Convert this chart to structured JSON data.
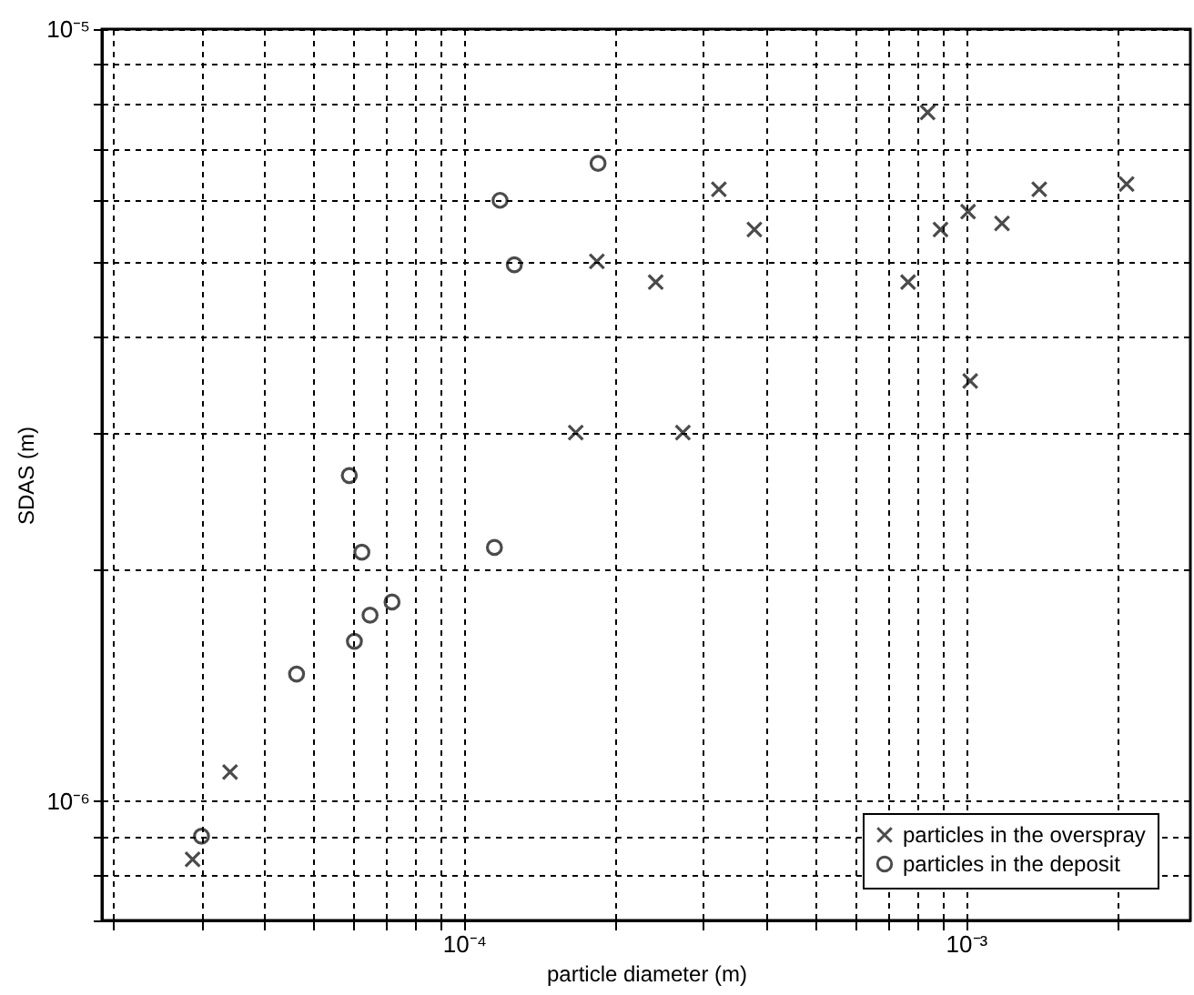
{
  "chart_data": {
    "type": "scatter",
    "xlabel": "particle diameter (m)",
    "ylabel": "SDAS (m)",
    "log": "xy",
    "grid": true,
    "legend": "bottom right",
    "xlim": [
      1.9e-05,
      0.0028
    ],
    "ylim": [
      7e-07,
      1e-05
    ],
    "xticks": [
      {
        "value": 2e-05,
        "label": null
      },
      {
        "value": 3e-05,
        "label": null
      },
      {
        "value": 4e-05,
        "label": null
      },
      {
        "value": 5e-05,
        "label": null
      },
      {
        "value": 6e-05,
        "label": null
      },
      {
        "value": 7e-05,
        "label": null
      },
      {
        "value": 8e-05,
        "label": null
      },
      {
        "value": 9e-05,
        "label": null
      },
      {
        "value": 0.0001,
        "label": "10⁻⁴"
      },
      {
        "value": 0.0002,
        "label": null
      },
      {
        "value": 0.0003,
        "label": null
      },
      {
        "value": 0.0004,
        "label": null
      },
      {
        "value": 0.0005,
        "label": null
      },
      {
        "value": 0.0006,
        "label": null
      },
      {
        "value": 0.0007,
        "label": null
      },
      {
        "value": 0.0008,
        "label": null
      },
      {
        "value": 0.0009,
        "label": null
      },
      {
        "value": 0.001,
        "label": "10⁻³"
      },
      {
        "value": 0.002,
        "label": null
      }
    ],
    "yticks": [
      {
        "value": 7e-07,
        "label": null
      },
      {
        "value": 8e-07,
        "label": null
      },
      {
        "value": 9e-07,
        "label": null
      },
      {
        "value": 1e-06,
        "label": "10⁻⁶"
      },
      {
        "value": 2e-06,
        "label": null
      },
      {
        "value": 3e-06,
        "label": null
      },
      {
        "value": 4e-06,
        "label": null
      },
      {
        "value": 5e-06,
        "label": null
      },
      {
        "value": 6e-06,
        "label": null
      },
      {
        "value": 7e-06,
        "label": null
      },
      {
        "value": 8e-06,
        "label": null
      },
      {
        "value": 9e-06,
        "label": null
      },
      {
        "value": 1e-05,
        "label": "10⁻⁵"
      }
    ],
    "series": [
      {
        "name": "particles in the overspray",
        "color": "#000000",
        "marker": "cross",
        "x": [
          2.88e-05,
          3.42e-05,
          0.000167,
          0.000184,
          0.000241,
          0.000273,
          0.000322,
          0.000379,
          0.000767,
          0.000839,
          0.00089,
          0.00101,
          0.00102,
          0.00118,
          0.0014,
          0.00209
        ],
        "values": [
          8.4e-07,
          1.09e-06,
          3e-06,
          5e-06,
          4.7e-06,
          3e-06,
          6.2e-06,
          5.5e-06,
          4.7e-06,
          7.8e-06,
          5.5e-06,
          5.8e-06,
          3.5e-06,
          5.6e-06,
          6.2e-06,
          6.3e-06
        ]
      },
      {
        "name": "particles in the deposit",
        "color": "#000000",
        "marker": "circle",
        "x": [
          3e-05,
          4.64e-05,
          5.91e-05,
          6.05e-05,
          6.26e-05,
          6.5e-05,
          7.19e-05,
          0.000115,
          0.000118,
          0.000126,
          0.000185
        ],
        "values": [
          9e-07,
          1.46e-06,
          2.64e-06,
          1.61e-06,
          2.1e-06,
          1.74e-06,
          1.81e-06,
          2.13e-06,
          6e-06,
          4.95e-06,
          6.7e-06
        ]
      }
    ]
  }
}
